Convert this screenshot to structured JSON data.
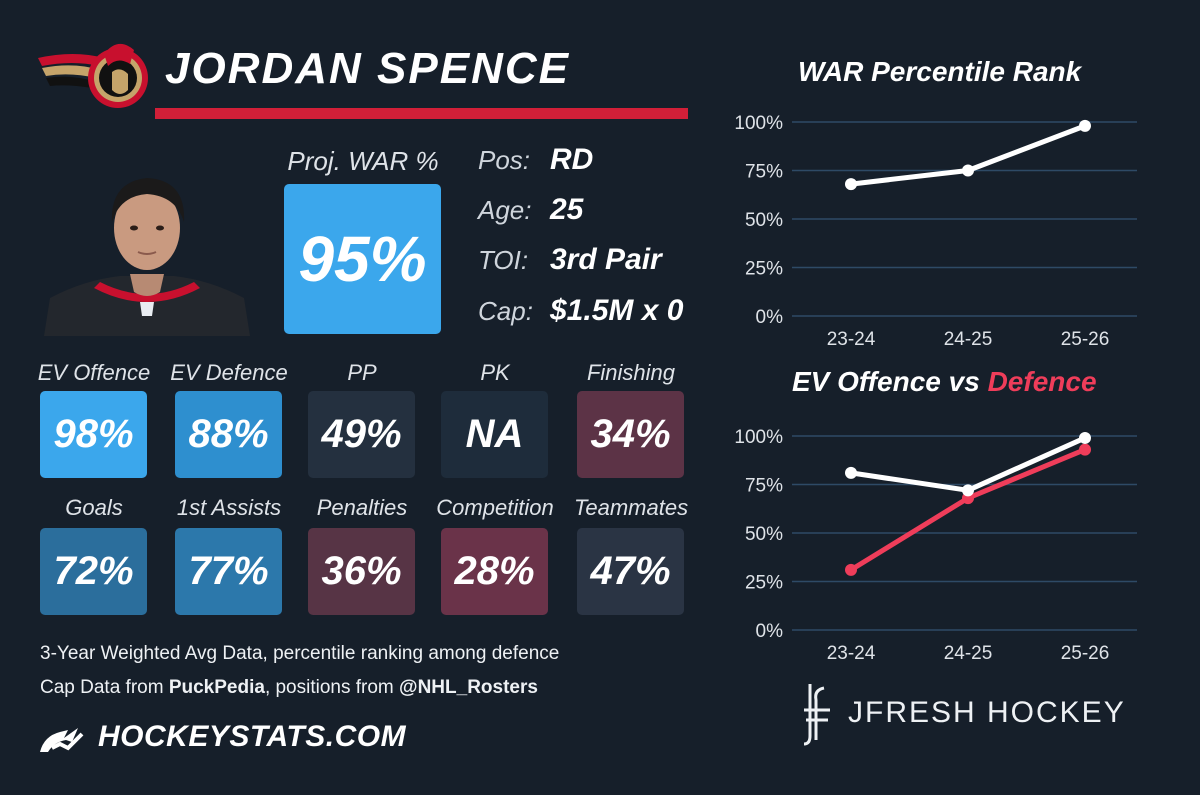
{
  "player": {
    "name": "JORDAN SPENCE"
  },
  "war": {
    "label": "Proj. WAR %",
    "value": "95%"
  },
  "info": [
    {
      "label": "Pos:",
      "value": "RD"
    },
    {
      "label": "Age:",
      "value": "25"
    },
    {
      "label": "TOI:",
      "value": "3rd Pair"
    },
    {
      "label": "Cap:",
      "value": "$1.5M x 0"
    }
  ],
  "tiles": [
    {
      "label": "EV Offence",
      "value": "98%",
      "color": "#3ba7ec"
    },
    {
      "label": "EV Defence",
      "value": "88%",
      "color": "#2e8fcf"
    },
    {
      "label": "PP",
      "value": "49%",
      "color": "#24303f"
    },
    {
      "label": "PK",
      "value": "NA",
      "color": "#1e2c3b"
    },
    {
      "label": "Finishing",
      "value": "34%",
      "color": "#5c3346"
    },
    {
      "label": "Goals",
      "value": "72%",
      "color": "#2b6e9c"
    },
    {
      "label": "1st Assists",
      "value": "77%",
      "color": "#2c78ab"
    },
    {
      "label": "Penalties",
      "value": "36%",
      "color": "#573445"
    },
    {
      "label": "Competition",
      "value": "28%",
      "color": "#6a3349"
    },
    {
      "label": "Teammates",
      "value": "47%",
      "color": "#2a3444"
    }
  ],
  "footer": {
    "line1": "3-Year Weighted Avg Data, percentile ranking among defence",
    "line2_prefix": "Cap Data from ",
    "line2_source1": "PuckPedia",
    "line2_mid": ", positions from ",
    "line2_source2": "@NHL_Rosters",
    "site": "HOCKEYSTATS.COM"
  },
  "credit": {
    "text": "JFRESH HOCKEY"
  },
  "chart_data": [
    {
      "type": "line",
      "title": "WAR Percentile Rank",
      "x": [
        "23-24",
        "24-25",
        "25-26"
      ],
      "ylim": [
        0,
        100
      ],
      "yticks": [
        "0%",
        "25%",
        "50%",
        "75%",
        "100%"
      ],
      "grid": true,
      "series": [
        {
          "values": [
            68,
            75,
            98
          ],
          "color": "#ffffff"
        }
      ]
    },
    {
      "type": "line",
      "title_part1": "EV Offence vs ",
      "title_part2": "Defence",
      "x": [
        "23-24",
        "24-25",
        "25-26"
      ],
      "ylim": [
        0,
        100
      ],
      "yticks": [
        "0%",
        "25%",
        "50%",
        "75%",
        "100%"
      ],
      "grid": true,
      "series": [
        {
          "values": [
            81,
            72,
            99
          ],
          "color": "#ffffff"
        },
        {
          "values": [
            31,
            68,
            93
          ],
          "color": "#ef3d5a"
        }
      ]
    }
  ]
}
